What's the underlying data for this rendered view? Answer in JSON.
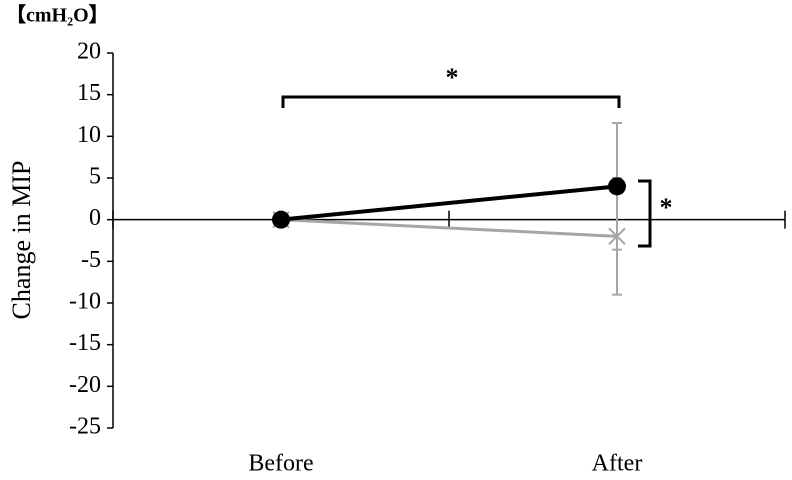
{
  "chart_data": {
    "type": "line",
    "unit_label": "【cmH₂O】",
    "y_label": "Change in MIP",
    "categories": [
      "Before",
      "After"
    ],
    "series": [
      {
        "color": "#000000",
        "marker": "circle",
        "values": [
          0,
          4
        ],
        "errors": [
          0,
          7.6
        ]
      },
      {
        "color": "#a6a6a6",
        "marker": "x",
        "values": [
          0,
          -2
        ],
        "errors": [
          0,
          7
        ]
      }
    ],
    "ylim": [
      -25,
      20
    ],
    "yticks": [
      -25,
      -20,
      -15,
      -10,
      -5,
      0,
      5,
      10,
      15,
      20
    ],
    "annotations": [
      {
        "text": "*"
      },
      {
        "text": "*"
      }
    ]
  }
}
